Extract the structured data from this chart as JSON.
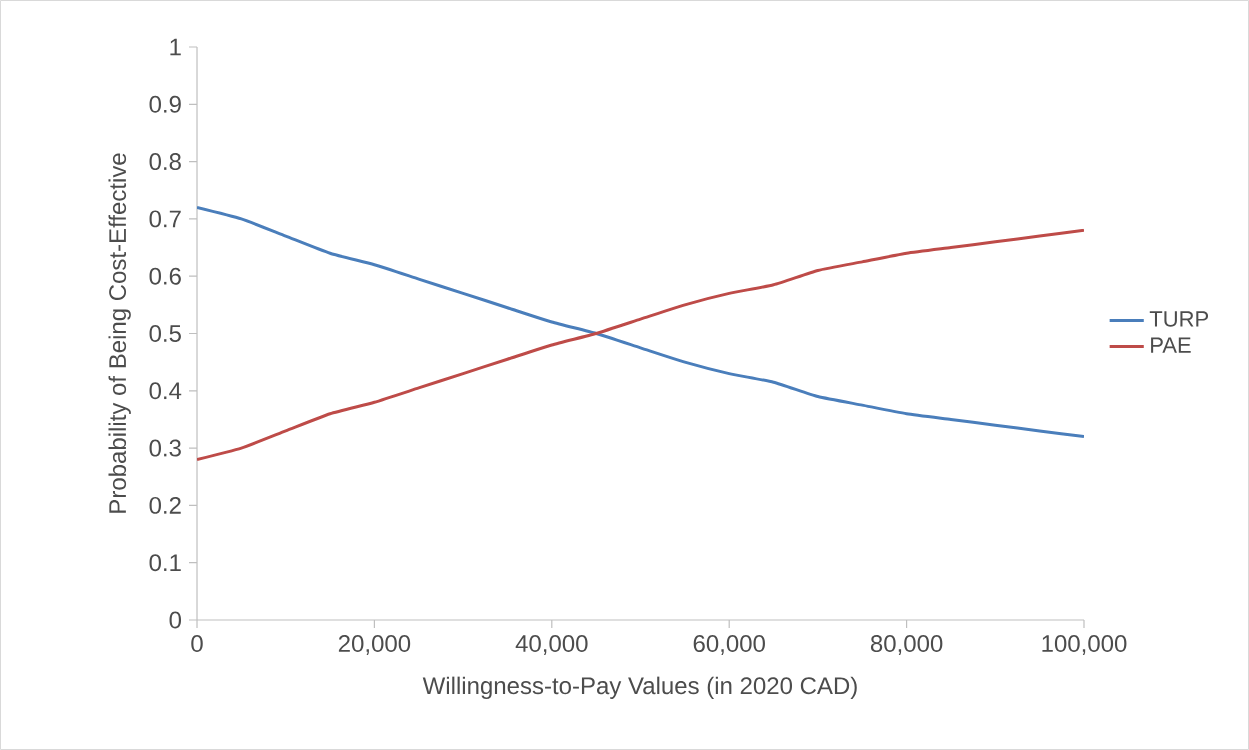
{
  "chart_data": {
    "type": "line",
    "xlabel": "Willingness-to-Pay Values (in 2020 CAD)",
    "ylabel": "Probability of Being Cost-Effective",
    "x": [
      0,
      5000,
      10000,
      15000,
      20000,
      25000,
      30000,
      35000,
      40000,
      45000,
      50000,
      55000,
      60000,
      65000,
      70000,
      75000,
      80000,
      85000,
      90000,
      95000,
      100000
    ],
    "series": [
      {
        "name": "TURP",
        "color": "#4a7ebb",
        "values": [
          0.72,
          0.7,
          0.67,
          0.64,
          0.62,
          0.595,
          0.57,
          0.545,
          0.52,
          0.5,
          0.475,
          0.45,
          0.43,
          0.415,
          0.39,
          0.375,
          0.36,
          0.35,
          0.34,
          0.33,
          0.32
        ]
      },
      {
        "name": "PAE",
        "color": "#be4b48",
        "values": [
          0.28,
          0.3,
          0.33,
          0.36,
          0.38,
          0.405,
          0.43,
          0.455,
          0.48,
          0.5,
          0.525,
          0.55,
          0.57,
          0.585,
          0.61,
          0.625,
          0.64,
          0.65,
          0.66,
          0.67,
          0.68
        ]
      }
    ],
    "xlim": [
      0,
      100000
    ],
    "ylim": [
      0,
      1
    ],
    "xticks": [
      0,
      {
        "value": 20000,
        "label": "20,000"
      },
      {
        "value": 40000,
        "label": "40,000"
      },
      {
        "value": 60000,
        "label": "60,000"
      },
      {
        "value": 80000,
        "label": "80,000"
      },
      {
        "value": 100000,
        "label": "100,000"
      }
    ],
    "yticks": [
      0,
      0.1,
      0.2,
      0.3,
      0.4,
      0.5,
      0.6,
      0.7,
      0.8,
      0.9,
      1
    ],
    "grid": false,
    "legend": "right",
    "marker": "none",
    "line_style": "solid"
  }
}
